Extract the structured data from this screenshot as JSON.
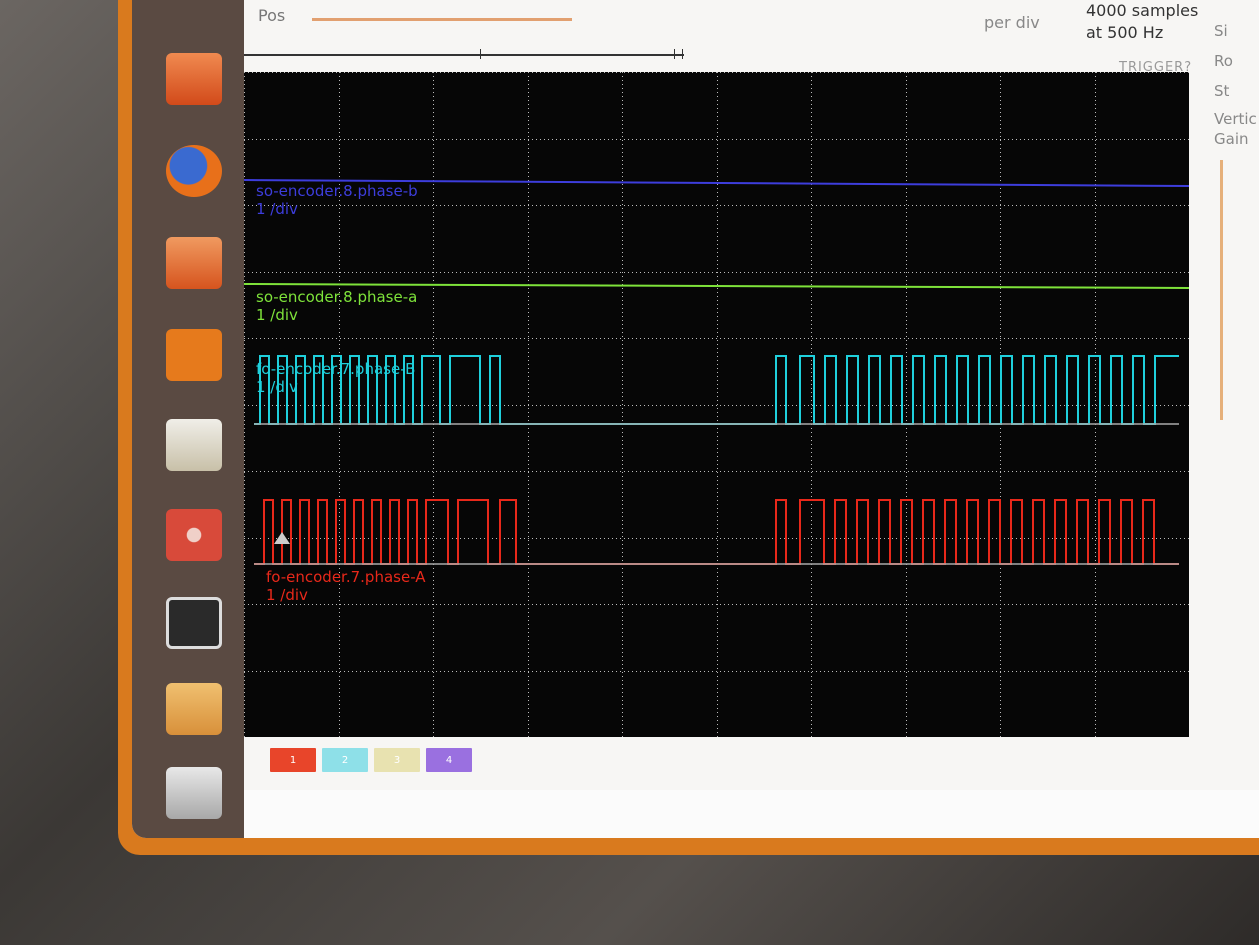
{
  "toolbar": {
    "pos_label": "Pos",
    "per_div_label": "per div",
    "samples_line1": "4000 samples",
    "samples_line2": "at 500 Hz",
    "trigger_label": "TRIGGER?"
  },
  "side_panel": {
    "item1": "Si",
    "item2": "Ro",
    "item3": "St",
    "vertical": "Vertic",
    "gain": "Gain"
  },
  "traces": [
    {
      "name": "so-encoder.8.phase-b",
      "scale": "1 /div",
      "color": "#3d3ddc"
    },
    {
      "name": "so-encoder.8.phase-a",
      "scale": "1 /div",
      "color": "#7ee23a"
    },
    {
      "name": "fo-encoder.7.phase-B",
      "scale": "1 /div",
      "color": "#1fd0dc"
    },
    {
      "name": "fo-encoder.7.phase-A",
      "scale": "1 /div",
      "color": "#e8281a"
    }
  ],
  "channel_tabs": [
    {
      "label": "1",
      "color": "#e8452a"
    },
    {
      "label": "2",
      "color": "#8ee0e8"
    },
    {
      "label": "3",
      "color": "#e8e2b0"
    },
    {
      "label": "4",
      "color": "#9a70e0"
    }
  ],
  "launcher": [
    {
      "icon": "files-icon",
      "color": "#e0602a"
    },
    {
      "icon": "firefox-icon",
      "color": "#e0701e"
    },
    {
      "icon": "software-center-icon",
      "color": "#e06a2a"
    },
    {
      "icon": "ubuntu-one-icon",
      "color": "#e67a1c"
    },
    {
      "icon": "image-viewer-icon",
      "color": "#d8d4c8"
    },
    {
      "icon": "settings-icon",
      "color": "#d84a3a"
    },
    {
      "icon": "terminal-icon",
      "color": "#2a2a2a"
    },
    {
      "icon": "gimp-icon",
      "color": "#e0a048"
    },
    {
      "icon": "trash-icon",
      "color": "#c8c8c8"
    }
  ],
  "colors": {
    "bezel_orange": "#d97a1e",
    "scope_background": "#060606",
    "grid": "#bbbbbb"
  }
}
